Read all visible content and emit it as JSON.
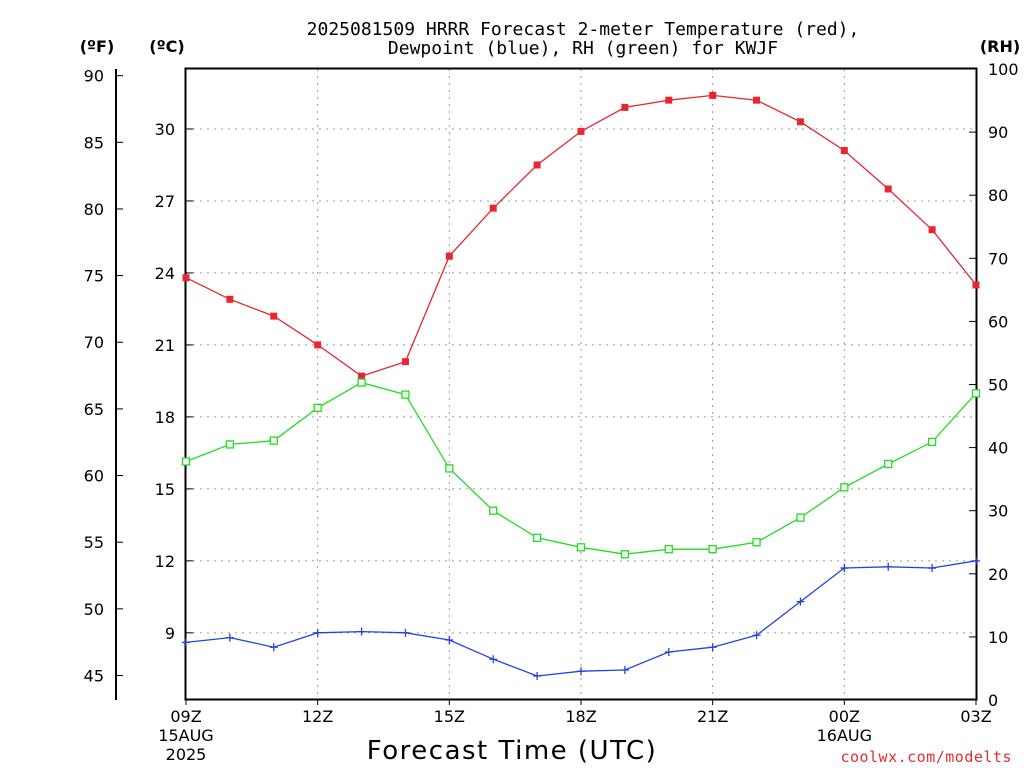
{
  "chart_data": {
    "type": "line",
    "title_line1": "2025081509 HRRR Forecast 2-meter Temperature (red),",
    "title_line2": "Dewpoint (blue), RH (green) for KWJF",
    "xlabel": "Forecast Time (UTC)",
    "credit": "coolwx.com/modelts",
    "left_f_axis": {
      "unit_label": "(ºF)",
      "ticks": [
        45,
        50,
        55,
        60,
        65,
        70,
        75,
        80,
        85,
        90
      ]
    },
    "left_c_axis": {
      "unit_label": "(ºC)",
      "ticks": [
        9,
        12,
        15,
        18,
        21,
        24,
        27,
        30
      ],
      "ylim": [
        6.2,
        32.5
      ]
    },
    "right_axis": {
      "unit_label": "(RH)",
      "ticks": [
        0,
        10,
        20,
        30,
        40,
        50,
        60,
        70,
        80,
        90,
        100
      ],
      "ylim": [
        0,
        100
      ]
    },
    "x_ticks": [
      {
        "hour": 0,
        "label": "09Z",
        "sub1": "15AUG",
        "sub2": "2025"
      },
      {
        "hour": 3,
        "label": "12Z",
        "sub1": "",
        "sub2": ""
      },
      {
        "hour": 6,
        "label": "15Z",
        "sub1": "",
        "sub2": ""
      },
      {
        "hour": 9,
        "label": "18Z",
        "sub1": "",
        "sub2": ""
      },
      {
        "hour": 12,
        "label": "21Z",
        "sub1": "",
        "sub2": ""
      },
      {
        "hour": 15,
        "label": "00Z",
        "sub1": "16AUG",
        "sub2": ""
      },
      {
        "hour": 18,
        "label": "03Z",
        "sub1": "",
        "sub2": ""
      }
    ],
    "x_range": [
      0,
      18
    ],
    "series": [
      {
        "name": "Temperature",
        "color": "#e8262f",
        "axis": "c",
        "marker": "filled-square",
        "values": [
          23.8,
          22.9,
          22.2,
          21.0,
          19.7,
          20.3,
          24.7,
          26.7,
          28.5,
          29.9,
          30.9,
          31.2,
          31.4,
          31.2,
          30.3,
          29.1,
          27.5,
          25.8,
          23.5
        ]
      },
      {
        "name": "Dewpoint",
        "color": "#2244dd",
        "axis": "c",
        "marker": "plus",
        "values": [
          8.6,
          8.8,
          8.4,
          9.0,
          9.05,
          9.0,
          8.7,
          7.9,
          7.2,
          7.4,
          7.45,
          8.2,
          8.4,
          8.9,
          10.3,
          11.7,
          11.75,
          11.7,
          12.0
        ]
      },
      {
        "name": "RH",
        "color": "#22dd22",
        "axis": "rh",
        "marker": "open-square",
        "values": [
          37.8,
          40.5,
          41.1,
          46.3,
          50.3,
          48.4,
          36.7,
          30.0,
          25.7,
          24.2,
          23.1,
          23.9,
          23.9,
          25.0,
          28.9,
          33.7,
          37.4,
          40.9,
          48.6
        ]
      }
    ]
  }
}
